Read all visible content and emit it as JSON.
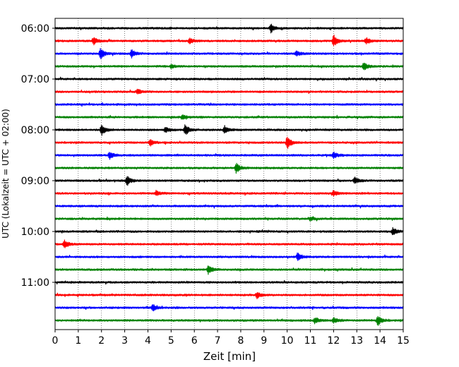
{
  "chart_data": {
    "type": "line",
    "title": "",
    "xlabel": "Zeit  [min]",
    "ylabel": "UTC (Lokalzeit = UTC + 02:00)",
    "xlim": [
      0,
      15
    ],
    "x_ticks": [
      "0",
      "1",
      "2",
      "3",
      "4",
      "5",
      "6",
      "7",
      "8",
      "9",
      "10",
      "11",
      "12",
      "13",
      "14",
      "15"
    ],
    "y_ticks": [
      "06:00",
      "07:00",
      "08:00",
      "09:00",
      "10:00",
      "11:00"
    ],
    "grid": "vertical dotted lines at each minute",
    "legend": "none",
    "trace_interval_minutes": 15,
    "trace_colors": [
      "#000000",
      "#ff0000",
      "#0000ff",
      "#008000"
    ],
    "series": [
      {
        "start": "06:00",
        "events": [
          [
            9.3,
            0.55
          ]
        ]
      },
      {
        "start": "06:15",
        "events": [
          [
            1.65,
            0.55
          ],
          [
            5.8,
            0.4
          ],
          [
            12.0,
            0.9
          ],
          [
            13.4,
            0.45
          ]
        ]
      },
      {
        "start": "06:30",
        "events": [
          [
            1.95,
            0.8
          ],
          [
            3.3,
            0.55
          ],
          [
            10.4,
            0.4
          ]
        ]
      },
      {
        "start": "06:45",
        "events": [
          [
            5.0,
            0.25
          ],
          [
            13.3,
            0.6
          ]
        ]
      },
      {
        "start": "07:00",
        "events": []
      },
      {
        "start": "07:15",
        "events": [
          [
            3.55,
            0.4
          ]
        ]
      },
      {
        "start": "07:30",
        "events": []
      },
      {
        "start": "07:45",
        "events": [
          [
            5.5,
            0.3
          ]
        ]
      },
      {
        "start": "08:00",
        "events": [
          [
            2.0,
            0.75
          ],
          [
            4.75,
            0.4
          ],
          [
            5.6,
            0.8
          ],
          [
            7.3,
            0.5
          ]
        ]
      },
      {
        "start": "08:15",
        "events": [
          [
            4.1,
            0.45
          ],
          [
            10.0,
            0.9
          ]
        ]
      },
      {
        "start": "08:30",
        "events": [
          [
            2.35,
            0.55
          ],
          [
            12.0,
            0.5
          ]
        ]
      },
      {
        "start": "08:45",
        "events": [
          [
            7.8,
            0.7
          ]
        ]
      },
      {
        "start": "09:00",
        "events": [
          [
            3.1,
            0.7
          ],
          [
            12.9,
            0.5
          ]
        ]
      },
      {
        "start": "09:15",
        "events": [
          [
            4.35,
            0.35
          ],
          [
            12.0,
            0.4
          ]
        ]
      },
      {
        "start": "09:30",
        "events": []
      },
      {
        "start": "09:45",
        "events": [
          [
            11.0,
            0.25
          ]
        ]
      },
      {
        "start": "10:00",
        "events": [
          [
            14.55,
            0.5
          ]
        ]
      },
      {
        "start": "10:15",
        "events": [
          [
            0.4,
            0.6
          ]
        ]
      },
      {
        "start": "10:30",
        "events": [
          [
            10.45,
            0.55
          ]
        ]
      },
      {
        "start": "10:45",
        "events": [
          [
            6.6,
            0.6
          ]
        ]
      },
      {
        "start": "11:00",
        "events": []
      },
      {
        "start": "11:15",
        "events": [
          [
            8.7,
            0.45
          ]
        ]
      },
      {
        "start": "11:30",
        "events": [
          [
            4.2,
            0.45
          ]
        ]
      },
      {
        "start": "11:45",
        "events": [
          [
            11.2,
            0.45
          ],
          [
            12.0,
            0.4
          ],
          [
            13.9,
            0.75
          ]
        ]
      }
    ]
  }
}
